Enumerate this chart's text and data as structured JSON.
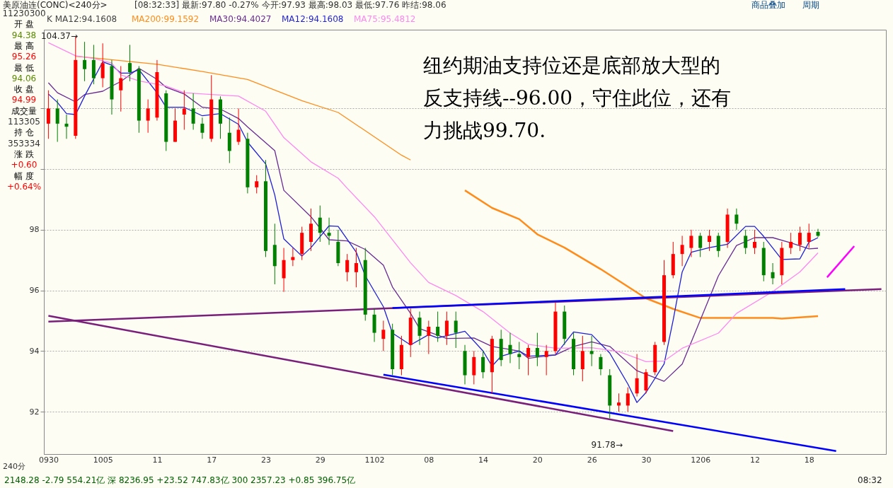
{
  "chart_data": {
    "type": "candlestick",
    "title": "美原油连(CONC)<240分>",
    "subtitle": "[08:32:33] 最新:97.80 -0.27% 今开:97.93 最高:98.03 最低:97.76 昨结:98.06",
    "categories": [
      "0930",
      null,
      null,
      null,
      null,
      null,
      "1005",
      null,
      null,
      null,
      null,
      null,
      "11",
      null,
      null,
      null,
      null,
      null,
      "17",
      null,
      null,
      null,
      null,
      null,
      "23",
      null,
      null,
      null,
      null,
      null,
      "29",
      null,
      null,
      null,
      null,
      null,
      "1102",
      null,
      null,
      null,
      null,
      null,
      "08",
      null,
      null,
      null,
      null,
      null,
      "14",
      null,
      null,
      null,
      null,
      null,
      "20",
      null,
      null,
      null,
      null,
      null,
      "26",
      null,
      null,
      null,
      null,
      null,
      "30",
      null,
      null,
      null,
      null,
      null,
      "1206",
      null,
      null,
      null,
      null,
      null,
      "12",
      null,
      null,
      null,
      null,
      null,
      "18",
      null,
      null,
      null,
      null,
      null,
      null,
      null,
      null
    ],
    "ohlc": [
      [
        101.5,
        102.6,
        101.0,
        102.0
      ],
      [
        102.0,
        102.3,
        100.9,
        101.5
      ],
      [
        101.5,
        101.8,
        101.0,
        101.4
      ],
      [
        101.1,
        104.37,
        101.0,
        103.6
      ],
      [
        103.6,
        104.2,
        102.9,
        103.3
      ],
      [
        103.6,
        104.1,
        102.8,
        103.0
      ],
      [
        103.0,
        104.15,
        102.7,
        103.5
      ],
      [
        103.4,
        103.6,
        101.8,
        102.3
      ],
      [
        102.6,
        103.4,
        101.9,
        103.0
      ],
      [
        103.5,
        104.1,
        102.9,
        103.2
      ],
      [
        103.3,
        103.4,
        101.2,
        101.6
      ],
      [
        101.6,
        102.3,
        101.2,
        102.0
      ],
      [
        101.7,
        103.6,
        101.6,
        103.2
      ],
      [
        102.5,
        102.6,
        100.6,
        100.9
      ],
      [
        100.9,
        102.0,
        100.9,
        101.6
      ],
      [
        101.8,
        102.6,
        101.3,
        102.0
      ],
      [
        102.0,
        102.5,
        101.3,
        101.5
      ],
      [
        101.5,
        101.7,
        101.0,
        101.2
      ],
      [
        101.0,
        103.1,
        100.9,
        102.3
      ],
      [
        102.3,
        102.4,
        101.0,
        101.5
      ],
      [
        101.2,
        101.7,
        100.2,
        100.6
      ],
      [
        100.9,
        102.0,
        100.8,
        101.3
      ],
      [
        101.0,
        101.2,
        99.2,
        99.4
      ],
      [
        99.4,
        99.8,
        99.2,
        99.6
      ],
      [
        99.6,
        100.3,
        97.1,
        97.3
      ],
      [
        97.5,
        98.2,
        96.2,
        96.8
      ],
      [
        96.4,
        97.4,
        95.95,
        97.0
      ],
      [
        97.0,
        97.4,
        96.8,
        97.1
      ],
      [
        97.2,
        98.1,
        97.0,
        97.9
      ],
      [
        97.6,
        98.7,
        97.3,
        98.2
      ],
      [
        98.4,
        98.8,
        97.6,
        97.9
      ],
      [
        97.9,
        98.4,
        97.5,
        97.8
      ],
      [
        97.6,
        98.0,
        96.8,
        96.9
      ],
      [
        96.6,
        97.2,
        96.3,
        97.0
      ],
      [
        96.6,
        97.4,
        96.1,
        96.9
      ],
      [
        97.0,
        97.4,
        95.0,
        95.2
      ],
      [
        95.2,
        95.4,
        94.3,
        94.6
      ],
      [
        94.4,
        95.0,
        94.0,
        94.7
      ],
      [
        94.7,
        94.9,
        93.2,
        93.4
      ],
      [
        93.4,
        94.5,
        93.2,
        94.2
      ],
      [
        94.2,
        95.4,
        93.8,
        95.1
      ],
      [
        95.1,
        95.3,
        94.2,
        94.5
      ],
      [
        94.5,
        95.0,
        93.9,
        94.8
      ],
      [
        94.8,
        95.3,
        94.3,
        94.5
      ],
      [
        94.5,
        95.3,
        94.2,
        95.0
      ],
      [
        95.0,
        95.3,
        94.1,
        94.6
      ],
      [
        94.0,
        94.2,
        92.9,
        93.2
      ],
      [
        93.2,
        94.0,
        92.9,
        93.8
      ],
      [
        93.8,
        94.0,
        93.1,
        93.3
      ],
      [
        93.3,
        94.5,
        92.6,
        94.4
      ],
      [
        94.4,
        94.7,
        93.5,
        93.7
      ],
      [
        94.2,
        94.6,
        93.6,
        93.9
      ],
      [
        93.9,
        94.3,
        93.4,
        93.8
      ],
      [
        93.8,
        94.2,
        93.2,
        94.1
      ],
      [
        94.1,
        94.6,
        93.5,
        93.8
      ],
      [
        93.8,
        94.2,
        93.2,
        94.0
      ],
      [
        94.0,
        95.6,
        93.9,
        95.3
      ],
      [
        95.3,
        95.5,
        94.2,
        94.4
      ],
      [
        94.4,
        94.6,
        93.2,
        93.4
      ],
      [
        93.4,
        94.5,
        93.0,
        94.0
      ],
      [
        94.0,
        94.5,
        93.5,
        93.9
      ],
      [
        93.8,
        93.9,
        93.2,
        93.4
      ],
      [
        93.2,
        93.4,
        91.78,
        92.2
      ],
      [
        92.2,
        92.6,
        92.0,
        92.3
      ],
      [
        92.2,
        92.8,
        92.0,
        92.6
      ],
      [
        92.6,
        93.9,
        92.5,
        93.1
      ],
      [
        92.7,
        93.4,
        92.6,
        93.3
      ],
      [
        93.3,
        94.3,
        93.2,
        94.2
      ],
      [
        94.3,
        97.0,
        94.2,
        96.5
      ],
      [
        96.5,
        97.6,
        96.4,
        97.2
      ],
      [
        97.2,
        97.8,
        96.8,
        97.5
      ],
      [
        97.4,
        98.0,
        97.1,
        97.8
      ],
      [
        97.8,
        97.9,
        97.1,
        97.4
      ],
      [
        97.6,
        98.0,
        97.3,
        97.8
      ],
      [
        97.8,
        97.9,
        97.1,
        97.3
      ],
      [
        97.6,
        98.7,
        97.4,
        98.5
      ],
      [
        98.5,
        98.7,
        98.0,
        98.2
      ],
      [
        97.8,
        98.0,
        97.2,
        97.4
      ],
      [
        97.4,
        98.0,
        97.2,
        97.6
      ],
      [
        97.4,
        97.6,
        96.3,
        96.5
      ],
      [
        96.6,
        96.9,
        96.2,
        96.4
      ],
      [
        96.5,
        97.6,
        96.2,
        97.4
      ],
      [
        97.4,
        97.9,
        97.2,
        97.6
      ],
      [
        97.5,
        98.1,
        97.3,
        97.9
      ],
      [
        97.6,
        98.2,
        97.4,
        97.9
      ],
      [
        97.93,
        98.03,
        97.76,
        97.8
      ],
      null,
      null,
      null,
      null,
      null,
      null,
      null
    ],
    "series": [
      {
        "name": "MA200:99.1592",
        "type": "line",
        "color": "#ff8c1a",
        "values": [
          null,
          null,
          null,
          103.72,
          null,
          103.67,
          null,
          null,
          null,
          null,
          null,
          null,
          103.46,
          null,
          null,
          null,
          null,
          103.22,
          null,
          null,
          null,
          null,
          102.96,
          null,
          null,
          null,
          null,
          null,
          102.26,
          null,
          null,
          null,
          101.87,
          null,
          null,
          null,
          null,
          null,
          null,
          100.46,
          100.3,
          null,
          null,
          null,
          null,
          null,
          null,
          null,
          null,
          null,
          null,
          null,
          null,
          null,
          null,
          null,
          null,
          null,
          null,
          null,
          null,
          null,
          null,
          null,
          null,
          null,
          null,
          null,
          null,
          null,
          null,
          null,
          null,
          null,
          null,
          null,
          null,
          null,
          null,
          null,
          null,
          null,
          null,
          null,
          null,
          null,
          null,
          null,
          null,
          null,
          null,
          null,
          null
        ]
      },
      {
        "type": "line",
        "color": "#ff8c1a",
        "values": [
          null,
          null,
          null,
          null,
          null,
          null,
          null,
          null,
          null,
          null,
          null,
          null,
          null,
          null,
          null,
          null,
          null,
          null,
          null,
          null,
          null,
          null,
          null,
          null,
          null,
          null,
          null,
          null,
          null,
          null,
          null,
          null,
          null,
          null,
          null,
          null,
          null,
          null,
          null,
          null,
          null,
          null,
          null,
          null,
          null,
          null,
          99.3,
          null,
          null,
          98.72,
          null,
          null,
          98.35,
          null,
          97.85,
          null,
          null,
          97.41,
          null,
          null,
          null,
          96.7,
          null,
          null,
          null,
          null,
          95.74,
          null,
          null,
          95.39,
          null,
          null,
          95.09,
          null,
          null,
          null,
          null,
          null,
          null,
          null,
          95.09,
          95.07,
          null,
          null,
          null,
          95.15,
          null,
          null,
          null,
          null,
          null,
          null,
          null
        ]
      },
      {
        "name": "MA30:94.4027",
        "type": "line",
        "color": "#6a2c91",
        "values": [
          102.85,
          102.52,
          null,
          102.22,
          102.46,
          null,
          102.57,
          102.74,
          102.89,
          null,
          103.33,
          null,
          102.96,
          102.7,
          null,
          102.48,
          null,
          102.04,
          null,
          101.98,
          null,
          101.67,
          101.39,
          null,
          null,
          100.61,
          99.3,
          null,
          null,
          98.43,
          null,
          97.67,
          null,
          97.63,
          null,
          97.35,
          null,
          96.83,
          96.11,
          null,
          95.24,
          94.74,
          null,
          null,
          94.41,
          null,
          null,
          94.43,
          null,
          94.15,
          null,
          null,
          94.0,
          93.76,
          null,
          null,
          93.87,
          null,
          94.15,
          null,
          94.3,
          null,
          94.15,
          null,
          null,
          93.35,
          null,
          null,
          93.0,
          null,
          93.57,
          null,
          95.02,
          null,
          96.48,
          null,
          97.48,
          null,
          97.74,
          null,
          97.74,
          null,
          97.57,
          null,
          97.37,
          97.39,
          null,
          null,
          null,
          null,
          null,
          null,
          null
        ]
      },
      {
        "name": "MA12:94.1608",
        "type": "line",
        "color": "#1f1fd6",
        "values": [
          102.48,
          102.2,
          101.83,
          101.8,
          102.41,
          null,
          103.54,
          103.43,
          103.17,
          103.17,
          103.28,
          null,
          102.52,
          102.04,
          null,
          102.04,
          null,
          101.76,
          null,
          101.83,
          null,
          101.48,
          100.89,
          null,
          100.17,
          99.15,
          97.7,
          null,
          97.13,
          97.41,
          null,
          98.13,
          98.11,
          null,
          97.26,
          96.48,
          null,
          95.46,
          94.59,
          null,
          94.2,
          null,
          94.54,
          94.43,
          null,
          null,
          94.65,
          null,
          94.0,
          93.5,
          93.83,
          null,
          94.0,
          93.83,
          null,
          null,
          93.87,
          null,
          94.63,
          null,
          94.54,
          null,
          93.93,
          null,
          92.91,
          92.3,
          92.63,
          null,
          93.57,
          95.02,
          96.61,
          97.26,
          null,
          97.41,
          null,
          97.52,
          null,
          98.11,
          98.11,
          97.78,
          null,
          97.02,
          null,
          97.04,
          97.59,
          97.74,
          null,
          null,
          null,
          null,
          null,
          null,
          null
        ]
      },
      {
        "name": "MA75:95.4812",
        "type": "line",
        "color": "#ff88ee",
        "values": [
          104.17,
          null,
          null,
          103.74,
          null,
          103.65,
          null,
          103.5,
          103.11,
          null,
          102.91,
          null,
          null,
          102.74,
          null,
          102.52,
          null,
          null,
          102.46,
          null,
          null,
          102.41,
          null,
          null,
          101.91,
          null,
          101.04,
          null,
          null,
          100.24,
          null,
          null,
          99.7,
          99.37,
          null,
          null,
          98.43,
          null,
          null,
          null,
          96.91,
          null,
          96.26,
          null,
          null,
          95.83,
          null,
          null,
          95.3,
          null,
          null,
          94.59,
          null,
          94.22,
          null,
          null,
          94.09,
          null,
          null,
          null,
          94.11,
          null,
          null,
          93.98,
          null,
          null,
          93.65,
          null,
          93.67,
          null,
          94.09,
          null,
          null,
          null,
          94.59,
          null,
          95.24,
          null,
          null,
          null,
          95.96,
          null,
          null,
          96.61,
          null,
          97.24,
          null,
          null,
          null,
          null,
          null,
          null,
          null
        ]
      },
      {
        "type": "line",
        "color": "#7a1f7a",
        "values": [
          94.97,
          null,
          null,
          null,
          null,
          null,
          null,
          null,
          null,
          null,
          null,
          null,
          null,
          null,
          null,
          null,
          null,
          null,
          null,
          null,
          null,
          null,
          null,
          null,
          null,
          null,
          null,
          null,
          null,
          null,
          null,
          null,
          null,
          null,
          null,
          null,
          null,
          null,
          null,
          null,
          null,
          null,
          null,
          null,
          null,
          null,
          null,
          null,
          null,
          null,
          null,
          null,
          null,
          null,
          null,
          null,
          null,
          null,
          null,
          null,
          null,
          null,
          null,
          null,
          null,
          null,
          null,
          null,
          null,
          null,
          null,
          null,
          null,
          null,
          null,
          null,
          null,
          null,
          null,
          null,
          null,
          null,
          null,
          null,
          null,
          null,
          null,
          null,
          null,
          null,
          null,
          null,
          96.04
        ]
      },
      {
        "type": "line",
        "color": "#7a1f7a",
        "values": [
          95.16,
          null,
          null,
          null,
          null,
          null,
          null,
          null,
          null,
          null,
          null,
          null,
          null,
          null,
          null,
          null,
          null,
          null,
          null,
          null,
          null,
          null,
          null,
          null,
          null,
          null,
          null,
          null,
          null,
          null,
          null,
          null,
          null,
          null,
          null,
          null,
          null,
          null,
          null,
          null,
          null,
          null,
          null,
          null,
          null,
          null,
          null,
          null,
          null,
          null,
          null,
          null,
          null,
          null,
          null,
          null,
          null,
          null,
          null,
          null,
          null,
          null,
          null,
          null,
          null,
          null,
          null,
          null,
          null,
          91.36,
          null,
          null,
          null,
          null,
          null,
          null,
          null,
          null,
          null,
          null,
          null,
          null,
          null,
          null,
          null,
          null,
          null,
          null,
          null,
          null,
          null,
          null,
          null
        ]
      },
      {
        "type": "line",
        "color": "#0000ff",
        "values": [
          null,
          null,
          null,
          null,
          null,
          null,
          null,
          null,
          null,
          null,
          null,
          null,
          null,
          null,
          null,
          null,
          null,
          null,
          null,
          null,
          null,
          null,
          null,
          null,
          null,
          null,
          null,
          null,
          null,
          null,
          null,
          null,
          null,
          null,
          null,
          null,
          null,
          null,
          95.42,
          null,
          null,
          null,
          null,
          null,
          null,
          null,
          null,
          null,
          null,
          null,
          null,
          null,
          null,
          null,
          null,
          null,
          null,
          null,
          null,
          null,
          null,
          null,
          null,
          null,
          null,
          null,
          null,
          null,
          null,
          null,
          null,
          null,
          null,
          null,
          null,
          null,
          null,
          null,
          null,
          null,
          null,
          null,
          null,
          null,
          null,
          null,
          null,
          null,
          96.04,
          null,
          null,
          null,
          null
        ]
      },
      {
        "type": "line",
        "color": "#0000ff",
        "values": [
          null,
          null,
          null,
          null,
          null,
          null,
          null,
          null,
          null,
          null,
          null,
          null,
          null,
          null,
          null,
          null,
          null,
          null,
          null,
          null,
          null,
          null,
          null,
          null,
          null,
          null,
          null,
          null,
          null,
          null,
          null,
          null,
          null,
          null,
          null,
          null,
          null,
          93.22,
          null,
          null,
          null,
          null,
          null,
          null,
          null,
          null,
          null,
          null,
          null,
          null,
          null,
          null,
          null,
          null,
          null,
          null,
          null,
          null,
          null,
          null,
          null,
          null,
          null,
          null,
          null,
          null,
          null,
          null,
          null,
          null,
          null,
          null,
          null,
          null,
          null,
          null,
          null,
          null,
          null,
          null,
          null,
          null,
          null,
          null,
          null,
          null,
          null,
          90.7,
          null,
          null,
          null,
          null,
          null
        ]
      },
      {
        "type": "line",
        "color": "#ff00ff",
        "values": [
          null,
          null,
          null,
          null,
          null,
          null,
          null,
          null,
          null,
          null,
          null,
          null,
          null,
          null,
          null,
          null,
          null,
          null,
          null,
          null,
          null,
          null,
          null,
          null,
          null,
          null,
          null,
          null,
          null,
          null,
          null,
          null,
          null,
          null,
          null,
          null,
          null,
          null,
          null,
          null,
          null,
          null,
          null,
          null,
          null,
          null,
          null,
          null,
          null,
          null,
          null,
          null,
          null,
          null,
          null,
          null,
          null,
          null,
          null,
          null,
          null,
          null,
          null,
          null,
          null,
          null,
          null,
          null,
          null,
          null,
          null,
          null,
          null,
          null,
          null,
          null,
          null,
          null,
          null,
          null,
          null,
          null,
          null,
          null,
          null,
          null,
          96.43,
          null,
          null,
          97.46,
          null,
          null,
          null
        ]
      }
    ],
    "ylim": [
      90.6,
      104.6
    ],
    "yticks": [
      92,
      94,
      96,
      98,
      {
        "value": 100,
        "label": null
      },
      {
        "value": 102,
        "label": null
      }
    ],
    "grid": "y",
    "annotations": [
      "纽约期油支持位还是底部放大型的反支持线--96.00，守住此位，还有力挑战99.70.",
      "11230300",
      "开 盘",
      "94.38",
      "最 高",
      "95.26",
      "最 低",
      "94.06",
      "收 盘",
      "94.99",
      "成交量",
      "113305",
      "持 仓",
      "353334",
      "涨 跌",
      "+0.60",
      "幅 度",
      "+0.64%",
      "2148.28   -2.79   554.21亿   深   8236.95   +23.52   747.83亿   300   2357.23   +0.85   396.75亿",
      "08:32",
      "商品叠加",
      "周期",
      "240分",
      "K MA12:94.1608",
      "104.37→",
      "91.78→"
    ]
  }
}
